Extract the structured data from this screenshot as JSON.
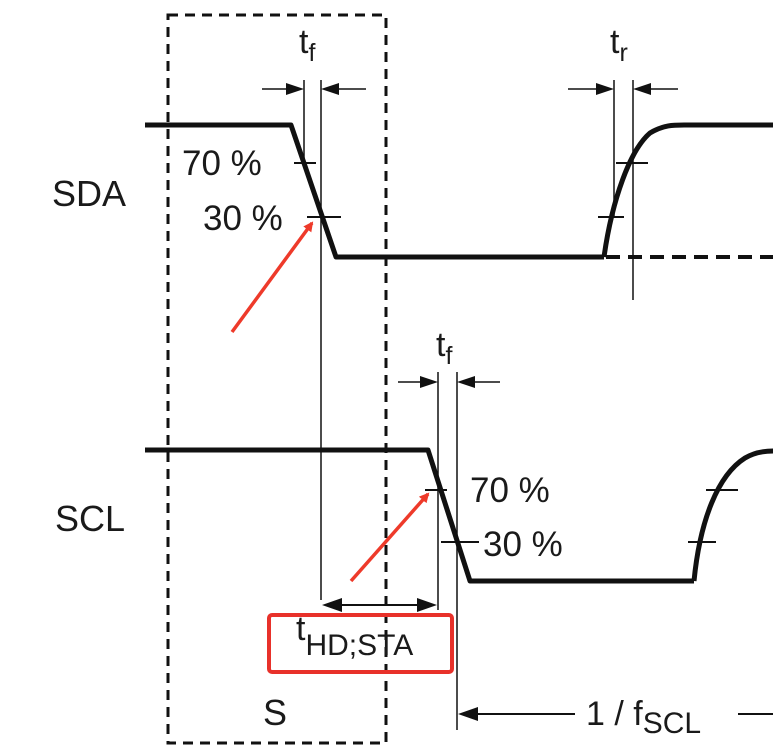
{
  "signals": {
    "sda": "SDA",
    "scl": "SCL"
  },
  "sda_levels": {
    "high": "70 %",
    "low": "30 %"
  },
  "scl_levels": {
    "high": "70 %",
    "low": "30 %"
  },
  "sda_fall": {
    "t": "t",
    "sub": "f"
  },
  "sda_rise": {
    "t": "t",
    "sub": "r"
  },
  "scl_fall": {
    "t": "t",
    "sub": "f"
  },
  "hold_time": {
    "t": "t",
    "sub": "HD;STA"
  },
  "period": {
    "prefix": "1 / f",
    "sub": "SCL"
  },
  "start_condition": "S",
  "colors": {
    "signal": "#111111",
    "annotation_arrow": "#ee3a2a",
    "highlight_box": "#e8312a"
  }
}
